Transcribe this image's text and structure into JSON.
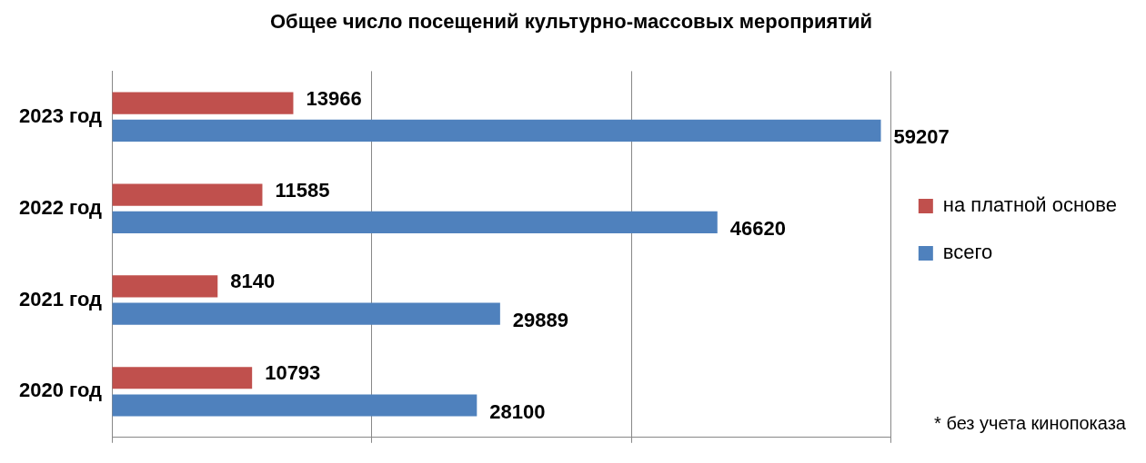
{
  "chart_data": {
    "type": "bar",
    "orientation": "horizontal",
    "title": "Общее число посещений культурно-массовых мероприятий",
    "categories": [
      "2023 год",
      "2022 год",
      "2021 год",
      "2020 год"
    ],
    "series": [
      {
        "name": "на платной основе",
        "color": "#c0504d",
        "values": [
          13966,
          11585,
          8140,
          10793
        ]
      },
      {
        "name": "всего",
        "color": "#4f81bd",
        "values": [
          59207,
          46620,
          29889,
          28100
        ]
      }
    ],
    "xlim": [
      0,
      60000
    ],
    "xticks": [
      {
        "value": 0,
        "label": null
      },
      {
        "value": 20000,
        "label": null
      },
      {
        "value": 40000,
        "label": null
      },
      {
        "value": 60000,
        "label": null
      }
    ],
    "grid": "x",
    "legend": "right",
    "tick_labels": "y",
    "data_labels": true,
    "annotations": [
      "* без учета кинопоказа"
    ]
  }
}
